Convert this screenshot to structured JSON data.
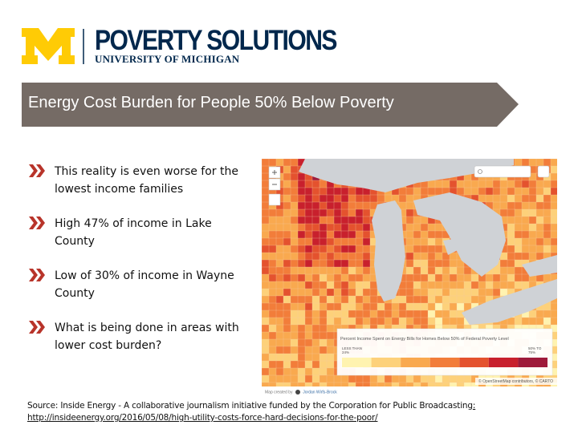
{
  "header": {
    "org_name": "POVERTY SOLUTIONS",
    "org_subtitle": "UNIVERSITY OF MICHIGAN"
  },
  "title": "Energy Cost Burden for People 50% Below Poverty",
  "bullets": [
    {
      "lines": [
        "This reality is even worse for the",
        "lowest income families"
      ]
    },
    {
      "lines": [
        "High 47% of income in Lake",
        "County"
      ]
    },
    {
      "lines": [
        "Low of 30% of income in Wayne",
        "County"
      ]
    },
    {
      "lines": [
        "What is being done in areas with",
        "lower cost burden?"
      ]
    }
  ],
  "map": {
    "legend_title": "Percent Income Spent on Energy Bills for Homes Below 50% of Federal Poverty Level",
    "legend_low": [
      "LESS THAN",
      "24%"
    ],
    "legend_high": [
      "50% TO",
      "75%"
    ],
    "attribution": "© OpenStreetMap contributors, © CARTO",
    "credit_prefix": "Map created by",
    "credit_author": "Jordan Wirfs-Brock"
  },
  "source": {
    "text": "Source: Inside Energy - A collaborative journalism initiative funded by the Corporation for Public Broadcasting",
    "url": "http://insideenergy.org/2016/05/08/high-utility-costs-force-hard-decisions-for-the-poor/"
  }
}
